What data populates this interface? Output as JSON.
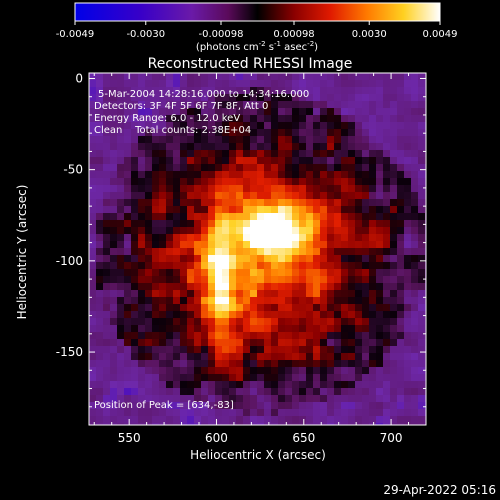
{
  "chart_data": {
    "type": "heatmap",
    "title": "Reconstructed RHESSI Image",
    "xlabel": "Heliocentric X (arcsec)",
    "ylabel": "Heliocentric Y (arcsec)",
    "xlim": [
      527,
      720
    ],
    "ylim": [
      -190,
      3
    ],
    "x_ticks": [
      550,
      600,
      650,
      700
    ],
    "y_ticks": [
      0,
      -50,
      -100,
      -150
    ],
    "annotations": [
      "5-Mar-2004 14:28:16.000 to 14:34:16.000",
      "Detectors: 3F 4F 5F 6F 7F 8F, Att 0",
      "Energy Range: 6.0 - 12.0 keV",
      "Clean    Total counts: 2.38E+04",
      "Position of Peak = [634,-83]"
    ],
    "peak": {
      "x": 634,
      "y": -83
    },
    "colorbar": {
      "range": [
        -0.0049,
        0.0049
      ],
      "tick_labels": [
        "-0.0049",
        "-0.0030",
        "-0.00098",
        "0.00098",
        "0.0030",
        "0.0049"
      ],
      "tick_values": [
        -0.0049,
        -0.003,
        -0.00098,
        0.00098,
        0.003,
        0.0049
      ],
      "units_label": "(photons cm<sup>-2</sup> s<sup>-1</sup> asec<sup>-2</sup>)"
    },
    "grid": false
  },
  "footer": {
    "timestamp": "29-Apr-2022 05:16"
  }
}
